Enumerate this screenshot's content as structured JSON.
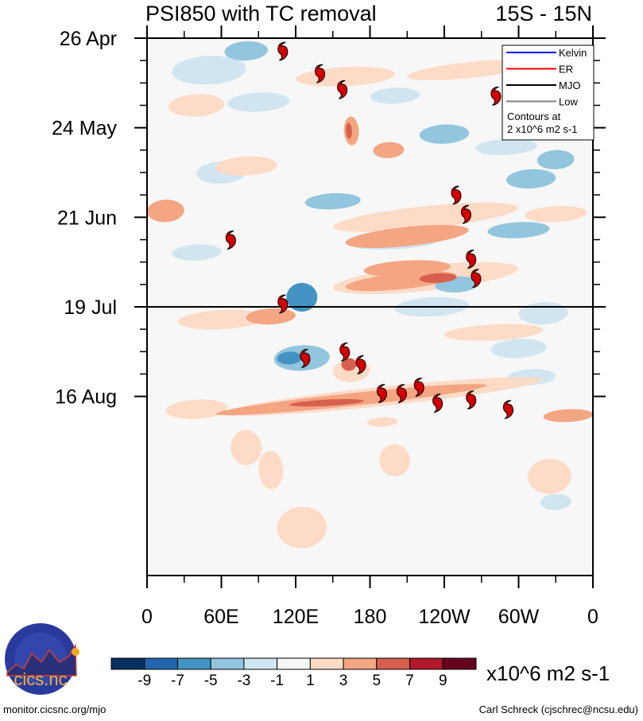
{
  "chart_data": {
    "type": "heatmap",
    "title_left": "PSI850 with TC removal",
    "title_right": "15S - 15N",
    "xlabel": "",
    "ylabel": "",
    "x_ticks": [
      "0",
      "60E",
      "120E",
      "180",
      "120W",
      "60W",
      "0"
    ],
    "x_range_deg": [
      0,
      360
    ],
    "y_ticks": [
      "26 Apr",
      "24 May",
      "21 Jun",
      "19 Jul",
      "16 Aug"
    ],
    "y_range_days_from_26Apr": [
      0,
      112
    ],
    "forecast_start_line": "19 Jul",
    "legend": {
      "position": "top-right",
      "entries": [
        {
          "label": "Kelvin",
          "color": "#0000ff"
        },
        {
          "label": "ER",
          "color": "#ff0000"
        },
        {
          "label": "MJO",
          "color": "#000000"
        },
        {
          "label": "Low",
          "color": "#808080"
        }
      ],
      "note_line1": "Contours at",
      "note_line2": "2 x10^6 m2 s-1"
    },
    "colorbar": {
      "levels": [
        "-9",
        "-7",
        "-5",
        "-3",
        "-1",
        "1",
        "3",
        "5",
        "7",
        "9"
      ],
      "colors": [
        "#053061",
        "#2166ac",
        "#4393c3",
        "#92c5de",
        "#d1e5f0",
        "#f7f7f7",
        "#fddbc7",
        "#f4a582",
        "#d6604d",
        "#b2182b",
        "#67001f"
      ],
      "units": "x10^6 m2 s-1"
    },
    "tc_markers": [
      {
        "lon": 110,
        "day": 4
      },
      {
        "lon": 140,
        "day": 11
      },
      {
        "lon": 158,
        "day": 16
      },
      {
        "lon": 282,
        "day": 18
      },
      {
        "lon": 250,
        "day": 49
      },
      {
        "lon": 258,
        "day": 55
      },
      {
        "lon": 68,
        "day": 63
      },
      {
        "lon": 262,
        "day": 69
      },
      {
        "lon": 266,
        "day": 75
      },
      {
        "lon": 110,
        "day": 83
      },
      {
        "lon": 160,
        "day": 98
      },
      {
        "lon": 128,
        "day": 100
      },
      {
        "lon": 173,
        "day": 102
      },
      {
        "lon": 190,
        "day": 111
      },
      {
        "lon": 206,
        "day": 111
      },
      {
        "lon": 220,
        "day": 109
      },
      {
        "lon": 235,
        "day": 114
      },
      {
        "lon": 262,
        "day": 113
      },
      {
        "lon": 292,
        "day": 116
      }
    ],
    "anomaly_blobs": [
      {
        "lon": 125,
        "day": 81,
        "dlon": 25,
        "dday": 8,
        "level": -5
      },
      {
        "lon": 125,
        "day": 100,
        "dlon": 45,
        "dday": 7,
        "level": -3
      },
      {
        "lon": 115,
        "day": 100,
        "dlon": 20,
        "dday": 3,
        "level": -5
      },
      {
        "lon": 150,
        "day": 51,
        "dlon": 45,
        "dday": 4,
        "level": -3
      },
      {
        "lon": 50,
        "day": 10,
        "dlon": 60,
        "dday": 8,
        "level": -1
      },
      {
        "lon": 310,
        "day": 44,
        "dlon": 40,
        "dday": 5,
        "level": -3
      },
      {
        "lon": 300,
        "day": 60,
        "dlon": 50,
        "dday": 4,
        "level": -3
      },
      {
        "lon": 200,
        "day": 63,
        "dlon": 80,
        "dday": 5,
        "level": -1
      },
      {
        "lon": 60,
        "day": 42,
        "dlon": 40,
        "dday": 6,
        "level": -1
      },
      {
        "lon": 240,
        "day": 30,
        "dlon": 40,
        "dday": 5,
        "level": -3
      },
      {
        "lon": 290,
        "day": 34,
        "dlon": 50,
        "dday": 4,
        "level": -1
      },
      {
        "lon": 330,
        "day": 38,
        "dlon": 30,
        "dday": 5,
        "level": -3
      },
      {
        "lon": 230,
        "day": 84,
        "dlon": 60,
        "dday": 5,
        "level": -1
      },
      {
        "lon": 320,
        "day": 86,
        "dlon": 40,
        "dday": 6,
        "level": -1
      },
      {
        "lon": 90,
        "day": 20,
        "dlon": 50,
        "dday": 5,
        "level": -1
      },
      {
        "lon": 300,
        "day": 97,
        "dlon": 45,
        "dday": 5,
        "level": -1
      },
      {
        "lon": 40,
        "day": 67,
        "dlon": 40,
        "dday": 4,
        "level": -1
      },
      {
        "lon": 200,
        "day": 18,
        "dlon": 40,
        "dday": 4,
        "level": -1
      },
      {
        "lon": 80,
        "day": 4,
        "dlon": 35,
        "dday": 5,
        "level": -3
      },
      {
        "lon": 250,
        "day": 77,
        "dlon": 35,
        "dday": 4,
        "level": -3
      },
      {
        "lon": 310,
        "day": 106,
        "dlon": 40,
        "dday": 4,
        "level": -1
      },
      {
        "lon": 330,
        "day": 145,
        "dlon": 25,
        "dday": 4,
        "level": -1
      },
      {
        "lon": 225,
        "day": 56,
        "dlon": 150,
        "dday": 6,
        "level": 1
      },
      {
        "lon": 210,
        "day": 62,
        "dlon": 100,
        "dday": 5,
        "level": 3
      },
      {
        "lon": 225,
        "day": 75,
        "dlon": 150,
        "dday": 7,
        "level": 1
      },
      {
        "lon": 210,
        "day": 72,
        "dlon": 70,
        "dday": 4,
        "level": 3
      },
      {
        "lon": 205,
        "day": 76,
        "dlon": 90,
        "dday": 4,
        "level": 3
      },
      {
        "lon": 235,
        "day": 75,
        "dlon": 30,
        "dday": 2,
        "level": 5
      },
      {
        "lon": 190,
        "day": 112,
        "dlon": 260,
        "dday": 5,
        "level": 1
      },
      {
        "lon": 165,
        "day": 113,
        "dlon": 220,
        "dday": 3,
        "level": 3
      },
      {
        "lon": 145,
        "day": 114,
        "dlon": 60,
        "dday": 1,
        "level": 5
      },
      {
        "lon": 165,
        "day": 104,
        "dlon": 30,
        "dday": 6,
        "level": 1
      },
      {
        "lon": 163,
        "day": 102,
        "dlon": 12,
        "dday": 3,
        "level": 5
      },
      {
        "lon": 160,
        "day": 12,
        "dlon": 80,
        "dday": 5,
        "level": 1
      },
      {
        "lon": 260,
        "day": 10,
        "dlon": 100,
        "dday": 4,
        "level": 1
      },
      {
        "lon": 165,
        "day": 29,
        "dlon": 12,
        "dday": 8,
        "level": 3
      },
      {
        "lon": 163,
        "day": 29,
        "dlon": 5,
        "dday": 4,
        "level": 5
      },
      {
        "lon": 195,
        "day": 35,
        "dlon": 25,
        "dday": 4,
        "level": 3
      },
      {
        "lon": 40,
        "day": 21,
        "dlon": 45,
        "dday": 6,
        "level": 1
      },
      {
        "lon": 80,
        "day": 40,
        "dlon": 50,
        "dday": 5,
        "level": 1
      },
      {
        "lon": 15,
        "day": 54,
        "dlon": 30,
        "dday": 6,
        "level": 3
      },
      {
        "lon": 330,
        "day": 55,
        "dlon": 50,
        "dday": 4,
        "level": 1
      },
      {
        "lon": 60,
        "day": 88,
        "dlon": 70,
        "dday": 5,
        "level": 1
      },
      {
        "lon": 100,
        "day": 87,
        "dlon": 40,
        "dday": 4,
        "level": 3
      },
      {
        "lon": 280,
        "day": 92,
        "dlon": 80,
        "dday": 4,
        "level": 1
      },
      {
        "lon": 340,
        "day": 118,
        "dlon": 40,
        "dday": 3,
        "level": 3
      },
      {
        "lon": 40,
        "day": 116,
        "dlon": 50,
        "dday": 5,
        "level": 1
      },
      {
        "lon": 80,
        "day": 128,
        "dlon": 25,
        "dday": 10,
        "level": 1
      },
      {
        "lon": 100,
        "day": 135,
        "dlon": 20,
        "dday": 11,
        "level": 1
      },
      {
        "lon": 200,
        "day": 132,
        "dlon": 25,
        "dday": 9,
        "level": 1
      },
      {
        "lon": 325,
        "day": 137,
        "dlon": 35,
        "dday": 10,
        "level": 1
      },
      {
        "lon": 125,
        "day": 153,
        "dlon": 40,
        "dday": 12,
        "level": 1
      },
      {
        "lon": 190,
        "day": 120,
        "dlon": 25,
        "dday": 2,
        "level": 1
      }
    ]
  },
  "footer": {
    "logo_text": "cics.nc",
    "logo_ring_text": "Cooperative Institute for Climate and Satellites",
    "left": "monitor.cicsnc.org/mjo",
    "right": "Carl Schreck (cjschrec@ncsu.edu)"
  }
}
